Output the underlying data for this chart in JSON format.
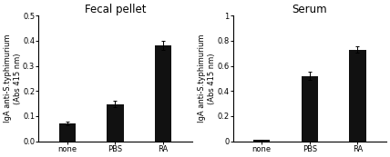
{
  "fecal": {
    "title": "Fecal pellet",
    "categories": [
      "none",
      "PBS",
      "RA"
    ],
    "values": [
      0.07,
      0.148,
      0.382
    ],
    "errors": [
      0.008,
      0.012,
      0.018
    ],
    "ylim": [
      0,
      0.5
    ],
    "yticks": [
      0.0,
      0.1,
      0.2,
      0.3,
      0.4,
      0.5
    ],
    "ytick_labels": [
      "0.0",
      "0.1",
      "0.2",
      "0.3",
      "0.4",
      "0.5"
    ],
    "ylabel": "IgA anti-S.typhimurium\n(Abs 415 nm)"
  },
  "serum": {
    "title": "Serum",
    "categories": [
      "none",
      "PBS",
      "RA"
    ],
    "values": [
      0.01,
      0.52,
      0.73
    ],
    "errors": [
      0.005,
      0.03,
      0.025
    ],
    "ylim": [
      0,
      1.0
    ],
    "yticks": [
      0,
      0.2,
      0.4,
      0.6,
      0.8,
      1.0
    ],
    "ytick_labels": [
      "0",
      "0.2",
      "0.4",
      "0.6",
      "0.8",
      "1"
    ],
    "ylabel": "IgA anti-S.typhimurium\n(Abs 415 nm)"
  },
  "bar_color": "#111111",
  "bar_width": 0.35,
  "title_fontsize": 8.5,
  "label_fontsize": 6.0,
  "tick_fontsize": 6.0,
  "background_color": "#ffffff"
}
